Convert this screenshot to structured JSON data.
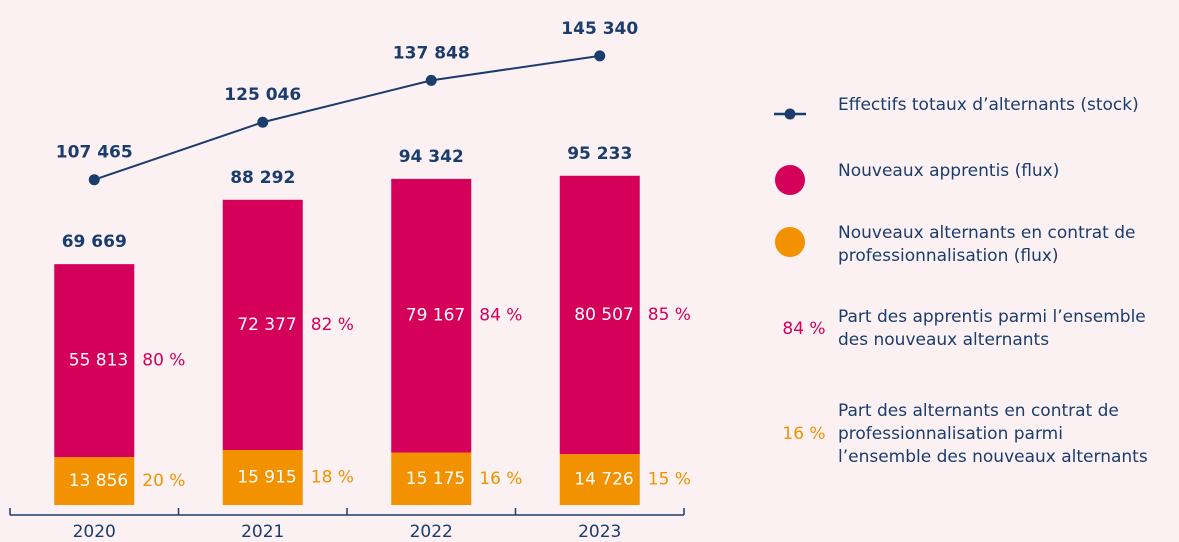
{
  "chart_data": {
    "type": "stacked_bar_line",
    "categories": [
      "2020",
      "2021",
      "2022",
      "2023"
    ],
    "series": [
      {
        "name": "Nouveaux apprentis (flux)",
        "color": "#d4005a",
        "values": [
          55813,
          72377,
          79167,
          80507
        ],
        "value_labels": [
          "55 813",
          "72 377",
          "79 167",
          "80 507"
        ],
        "shares": [
          80,
          82,
          84,
          85
        ],
        "share_labels": [
          "80 %",
          "82 %",
          "84 %",
          "85 %"
        ]
      },
      {
        "name": "Nouveaux alternants en contrat de professionnalisation (flux)",
        "color": "#f39200",
        "values": [
          13856,
          15915,
          15175,
          14726
        ],
        "value_labels": [
          "13 856",
          "15 915",
          "15 175",
          "14 726"
        ],
        "shares": [
          20,
          18,
          16,
          15
        ],
        "share_labels": [
          "20 %",
          "18 %",
          "16 %",
          "15 %"
        ]
      },
      {
        "name": "Effectifs totaux d’alternants (stock)",
        "color": "#1b3d6d",
        "type": "line",
        "axis": "y2",
        "values": [
          107465,
          125046,
          137848,
          145340
        ],
        "value_labels": [
          "107 465",
          "125 046",
          "137 848",
          "145 340"
        ]
      }
    ],
    "totals": [
      69669,
      88292,
      94342,
      95233
    ],
    "total_labels": [
      "69 669",
      "88 292",
      "94 342",
      "95 233"
    ],
    "share_legend": [
      {
        "symbol": "84 %",
        "text": "Part des apprentis parmi l’ensemble des nouveaux alternants",
        "color": "#d4005a"
      },
      {
        "symbol": "16 %",
        "text": "Part des alternants en contrat de professionnalisation parmi l’ensemble des nouveaux alternants",
        "color": "#f39200"
      }
    ],
    "ylim": [
      0,
      140000
    ],
    "y2lim": [
      8000,
      156000
    ]
  }
}
